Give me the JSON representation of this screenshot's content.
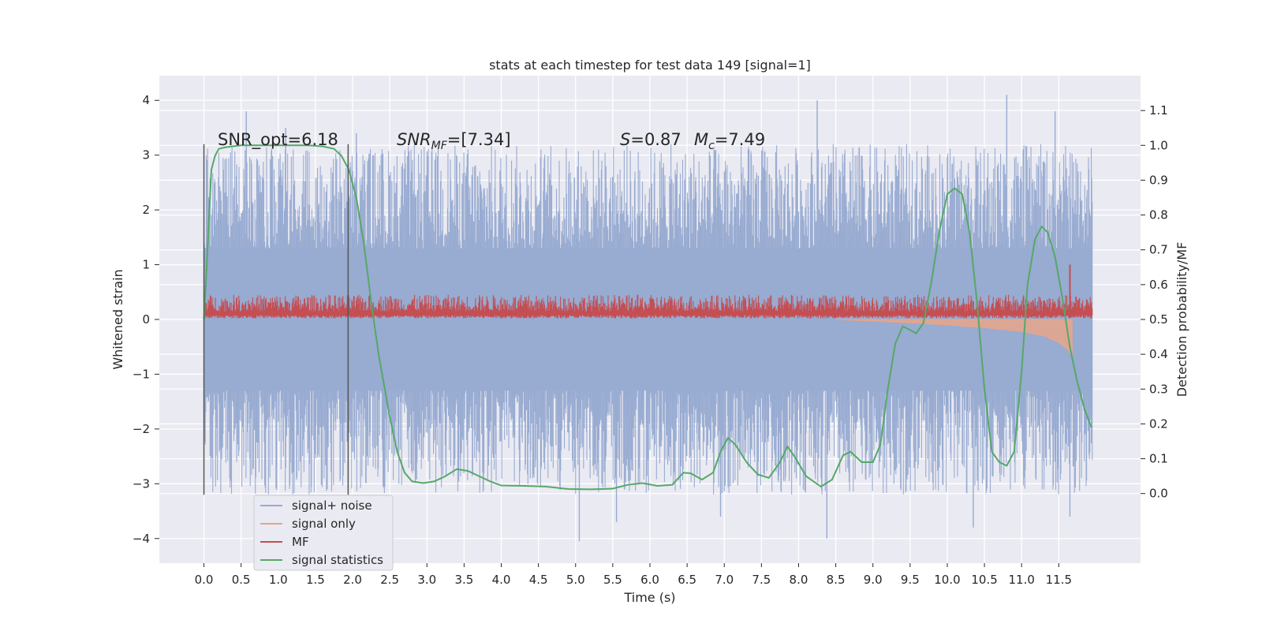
{
  "chart_data": {
    "type": "line",
    "title": "stats at each timestep for test data 149 [signal=1]",
    "xlabel": "Time (s)",
    "ylabel_left": "Whitened strain",
    "ylabel_right": "Detection probability/MF",
    "xlim": [
      -0.6,
      12.6
    ],
    "ylim_left": [
      -4.45,
      4.45
    ],
    "ylim_right": [
      -0.2,
      1.2
    ],
    "x_ticks": [
      "0.0",
      "0.5",
      "1.0",
      "1.5",
      "2.0",
      "2.5",
      "3.0",
      "3.5",
      "4.0",
      "4.5",
      "5.0",
      "5.5",
      "6.0",
      "6.5",
      "7.0",
      "7.5",
      "8.0",
      "8.5",
      "9.0",
      "9.5",
      "10.0",
      "10.5",
      "11.0",
      "11.5"
    ],
    "y_left_ticks": [
      "4",
      "3",
      "2",
      "1",
      "0",
      "−1",
      "−2",
      "−3",
      "−4"
    ],
    "y_right_ticks": [
      "1.1",
      "1.0",
      "0.9",
      "0.8",
      "0.7",
      "0.6",
      "0.5",
      "0.4",
      "0.3",
      "0.2",
      "0.1",
      "0.0"
    ],
    "annotations": {
      "snr_opt": "SNR_opt=6.18",
      "snr_mf_base": "SNR",
      "snr_mf_sub": "MF",
      "snr_mf_val": "=[7.34]",
      "spin_sym": "S",
      "spin_val": "=0.87",
      "mc_sym": "M",
      "mc_sub": "c",
      "mc_val": "=7.49"
    },
    "vertical_markers_x": [
      0.0,
      1.94
    ],
    "vertical_markers_range": [
      -3.2,
      3.2
    ],
    "legend": {
      "placement": "lower-left",
      "entries": [
        "signal+ noise",
        "signal only",
        "MF",
        "signal statistics"
      ]
    },
    "colors": {
      "signal_noise": "#98abd1",
      "signal_only": "#e8a48a",
      "mf": "#c44e52",
      "stats": "#55a868",
      "plot_bg": "#eaeaf2",
      "grid": "#ffffff",
      "marker_line": "#555555"
    },
    "series": [
      {
        "name": "signal+ noise",
        "axis": "left",
        "x_range": [
          0.0,
          11.95
        ],
        "body_amplitude": 1.3,
        "spike_extremes": [
          {
            "x": 0.57,
            "y": 3.8
          },
          {
            "x": 1.1,
            "y": 3.5
          },
          {
            "x": 2.05,
            "y": 3.4
          },
          {
            "x": 5.05,
            "y": -4.05
          },
          {
            "x": 5.55,
            "y": -3.7
          },
          {
            "x": 6.95,
            "y": -3.6
          },
          {
            "x": 8.25,
            "y": 4.0
          },
          {
            "x": 8.38,
            "y": -4.0
          },
          {
            "x": 10.35,
            "y": -3.8
          },
          {
            "x": 10.8,
            "y": 4.1
          },
          {
            "x": 11.45,
            "y": 3.8
          },
          {
            "x": 11.65,
            "y": -3.6
          }
        ]
      },
      {
        "name": "signal only",
        "axis": "left",
        "points": [
          {
            "x": 8.5,
            "y": 0.0
          },
          {
            "x": 9.0,
            "y": -0.03
          },
          {
            "x": 9.5,
            "y": -0.06
          },
          {
            "x": 10.0,
            "y": -0.1
          },
          {
            "x": 10.5,
            "y": -0.15
          },
          {
            "x": 11.0,
            "y": -0.22
          },
          {
            "x": 11.3,
            "y": -0.3
          },
          {
            "x": 11.5,
            "y": -0.42
          },
          {
            "x": 11.62,
            "y": -0.55
          },
          {
            "x": 11.68,
            "y": -0.68
          }
        ]
      },
      {
        "name": "MF",
        "axis": "left",
        "x_range": [
          0.0,
          11.95
        ],
        "band": [
          0.02,
          0.45
        ],
        "peak": {
          "x": 11.65,
          "y": 1.0
        }
      },
      {
        "name": "signal statistics",
        "axis": "right",
        "points": [
          {
            "x": 0.0,
            "y": 0.5
          },
          {
            "x": 0.03,
            "y": 0.62
          },
          {
            "x": 0.07,
            "y": 0.8
          },
          {
            "x": 0.1,
            "y": 0.93
          },
          {
            "x": 0.15,
            "y": 0.97
          },
          {
            "x": 0.2,
            "y": 0.99
          },
          {
            "x": 0.3,
            "y": 0.995
          },
          {
            "x": 0.5,
            "y": 1.0
          },
          {
            "x": 1.0,
            "y": 1.0
          },
          {
            "x": 1.4,
            "y": 1.0
          },
          {
            "x": 1.6,
            "y": 0.997
          },
          {
            "x": 1.75,
            "y": 0.99
          },
          {
            "x": 1.85,
            "y": 0.97
          },
          {
            "x": 1.95,
            "y": 0.93
          },
          {
            "x": 2.05,
            "y": 0.85
          },
          {
            "x": 2.15,
            "y": 0.72
          },
          {
            "x": 2.25,
            "y": 0.55
          },
          {
            "x": 2.35,
            "y": 0.4
          },
          {
            "x": 2.5,
            "y": 0.22
          },
          {
            "x": 2.6,
            "y": 0.12
          },
          {
            "x": 2.7,
            "y": 0.06
          },
          {
            "x": 2.8,
            "y": 0.035
          },
          {
            "x": 2.95,
            "y": 0.03
          },
          {
            "x": 3.1,
            "y": 0.035
          },
          {
            "x": 3.25,
            "y": 0.05
          },
          {
            "x": 3.4,
            "y": 0.07
          },
          {
            "x": 3.55,
            "y": 0.065
          },
          {
            "x": 3.7,
            "y": 0.05
          },
          {
            "x": 3.85,
            "y": 0.035
          },
          {
            "x": 4.0,
            "y": 0.023
          },
          {
            "x": 4.3,
            "y": 0.022
          },
          {
            "x": 4.6,
            "y": 0.02
          },
          {
            "x": 4.9,
            "y": 0.013
          },
          {
            "x": 5.2,
            "y": 0.012
          },
          {
            "x": 5.5,
            "y": 0.014
          },
          {
            "x": 5.7,
            "y": 0.025
          },
          {
            "x": 5.9,
            "y": 0.03
          },
          {
            "x": 6.1,
            "y": 0.022
          },
          {
            "x": 6.3,
            "y": 0.025
          },
          {
            "x": 6.45,
            "y": 0.06
          },
          {
            "x": 6.55,
            "y": 0.058
          },
          {
            "x": 6.7,
            "y": 0.04
          },
          {
            "x": 6.85,
            "y": 0.06
          },
          {
            "x": 6.95,
            "y": 0.12
          },
          {
            "x": 7.05,
            "y": 0.16
          },
          {
            "x": 7.15,
            "y": 0.14
          },
          {
            "x": 7.3,
            "y": 0.09
          },
          {
            "x": 7.45,
            "y": 0.055
          },
          {
            "x": 7.6,
            "y": 0.045
          },
          {
            "x": 7.75,
            "y": 0.09
          },
          {
            "x": 7.85,
            "y": 0.135
          },
          {
            "x": 7.95,
            "y": 0.105
          },
          {
            "x": 8.1,
            "y": 0.05
          },
          {
            "x": 8.3,
            "y": 0.02
          },
          {
            "x": 8.45,
            "y": 0.04
          },
          {
            "x": 8.6,
            "y": 0.11
          },
          {
            "x": 8.7,
            "y": 0.12
          },
          {
            "x": 8.85,
            "y": 0.09
          },
          {
            "x": 9.0,
            "y": 0.09
          },
          {
            "x": 9.1,
            "y": 0.14
          },
          {
            "x": 9.2,
            "y": 0.3
          },
          {
            "x": 9.3,
            "y": 0.43
          },
          {
            "x": 9.4,
            "y": 0.48
          },
          {
            "x": 9.5,
            "y": 0.47
          },
          {
            "x": 9.58,
            "y": 0.46
          },
          {
            "x": 9.68,
            "y": 0.49
          },
          {
            "x": 9.78,
            "y": 0.6
          },
          {
            "x": 9.9,
            "y": 0.76
          },
          {
            "x": 10.0,
            "y": 0.86
          },
          {
            "x": 10.1,
            "y": 0.877
          },
          {
            "x": 10.2,
            "y": 0.86
          },
          {
            "x": 10.3,
            "y": 0.75
          },
          {
            "x": 10.4,
            "y": 0.55
          },
          {
            "x": 10.5,
            "y": 0.3
          },
          {
            "x": 10.6,
            "y": 0.12
          },
          {
            "x": 10.7,
            "y": 0.09
          },
          {
            "x": 10.8,
            "y": 0.08
          },
          {
            "x": 10.9,
            "y": 0.12
          },
          {
            "x": 11.0,
            "y": 0.35
          },
          {
            "x": 11.08,
            "y": 0.6
          },
          {
            "x": 11.18,
            "y": 0.73
          },
          {
            "x": 11.27,
            "y": 0.767
          },
          {
            "x": 11.35,
            "y": 0.75
          },
          {
            "x": 11.45,
            "y": 0.68
          },
          {
            "x": 11.55,
            "y": 0.56
          },
          {
            "x": 11.65,
            "y": 0.42
          },
          {
            "x": 11.75,
            "y": 0.32
          },
          {
            "x": 11.85,
            "y": 0.24
          },
          {
            "x": 11.94,
            "y": 0.19
          }
        ]
      }
    ]
  }
}
